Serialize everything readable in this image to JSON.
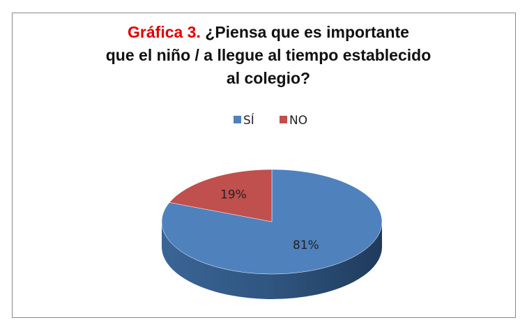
{
  "chart_data": {
    "type": "pie",
    "title": [
      "Gráfica 3.",
      "¿Piensa que es importante que el niño / a  llegue  al tiempo establecido al colegio?"
    ],
    "categories": [
      "SÍ",
      "NO"
    ],
    "values": [
      81,
      19
    ],
    "value_labels": [
      "81%",
      "19%"
    ],
    "colors": [
      "#4f81bd",
      "#c0504d"
    ],
    "legend": "top"
  }
}
